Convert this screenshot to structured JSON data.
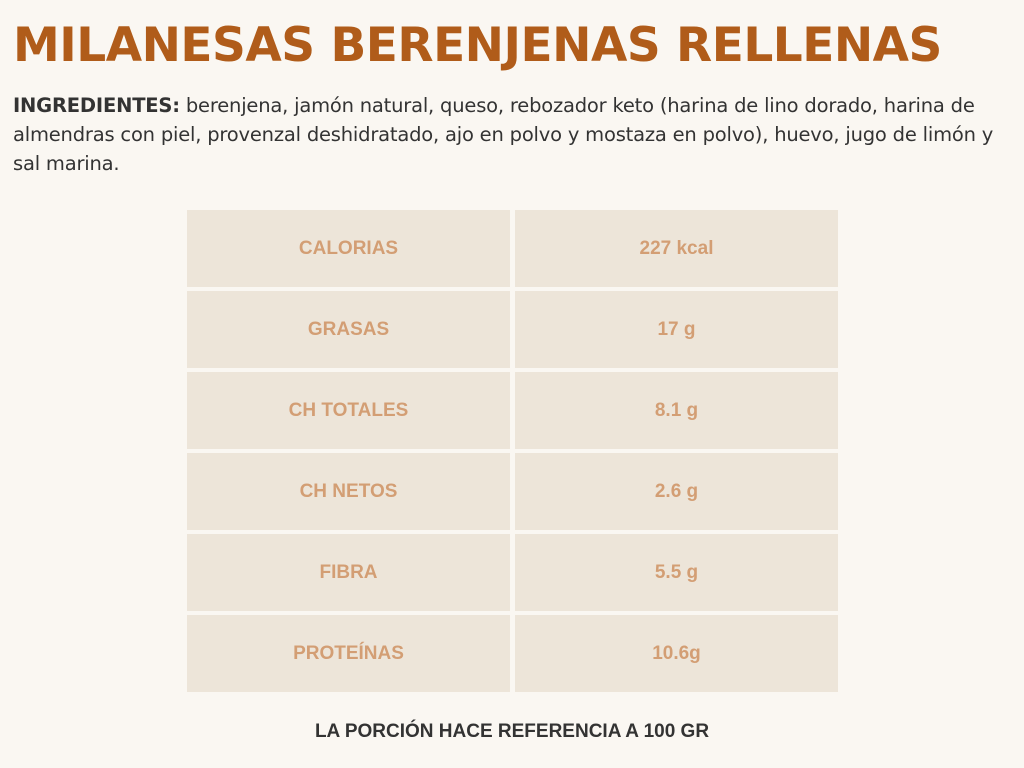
{
  "title": "MILANESAS BERENJENAS RELLENAS",
  "ingredients": {
    "label": "INGREDIENTES:",
    "text": " berenjena, jamón natural, queso, rebozador keto (harina de lino dorado, harina de almendras con piel, provenzal deshidratado, ajo en polvo y mostaza en polvo), huevo, jugo de limón y sal marina."
  },
  "nutrition": [
    {
      "label": "CALORIAS",
      "value": "227 kcal"
    },
    {
      "label": "GRASAS",
      "value": "17 g"
    },
    {
      "label": "CH TOTALES",
      "value": "8.1 g"
    },
    {
      "label": "CH NETOS",
      "value": "2.6 g"
    },
    {
      "label": "FIBRA",
      "value": "5.5 g"
    },
    {
      "label": "PROTEÍNAS",
      "value": "10.6g"
    }
  ],
  "footer": "LA PORCIÓN HACE REFERENCIA A 100 GR",
  "colors": {
    "title": "#b05c1a",
    "cell_bg": "#ede5d9",
    "cell_text": "#d39e74",
    "background": "#faf7f2"
  }
}
